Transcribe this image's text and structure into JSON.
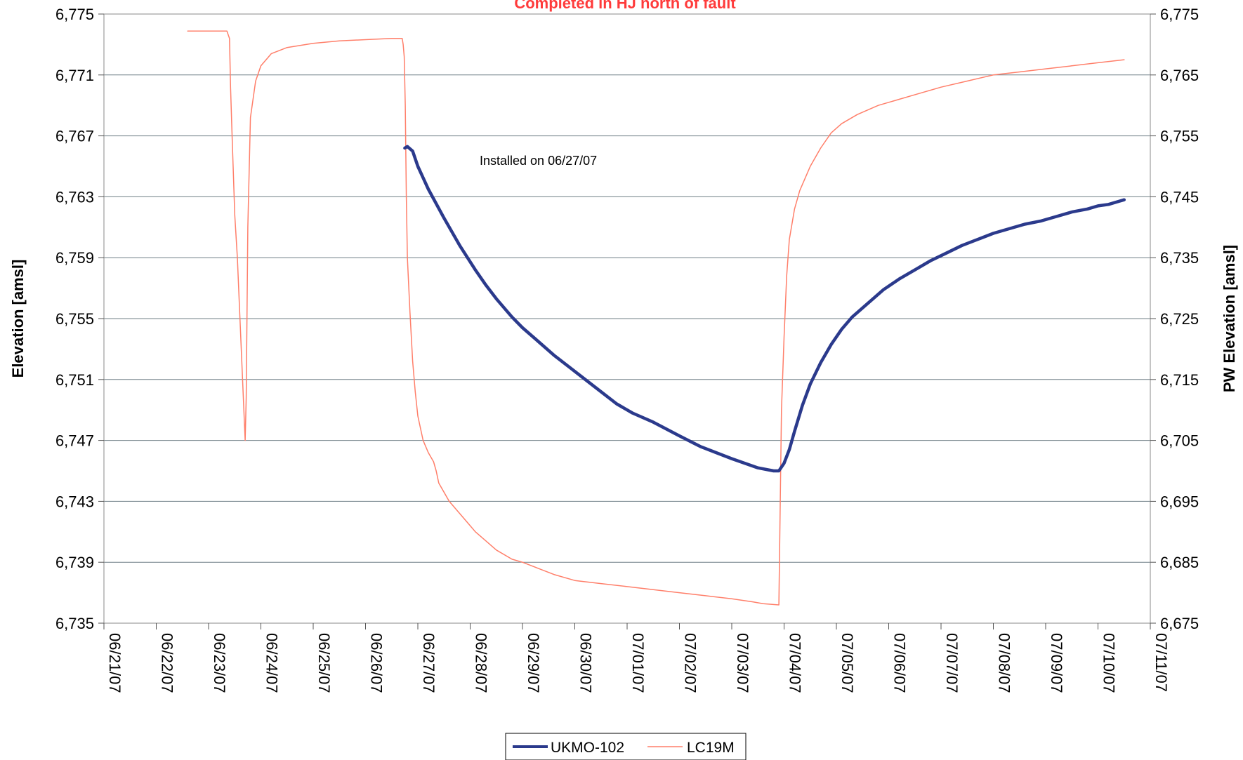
{
  "chart_data": {
    "type": "line",
    "title": "Completed in HJ north of fault",
    "ylabel": "Elevation [amsl]",
    "y2label": "PW Elevation [amsl]",
    "ylim": [
      6735,
      6775
    ],
    "y2lim": [
      6675,
      6775
    ],
    "y_ticks": [
      "6,735",
      "6,739",
      "6,743",
      "6,747",
      "6,751",
      "6,755",
      "6,759",
      "6,763",
      "6,767",
      "6,771",
      "6,775"
    ],
    "y2_ticks": [
      "6,675",
      "6,685",
      "6,695",
      "6,705",
      "6,715",
      "6,725",
      "6,735",
      "6,745",
      "6,755",
      "6,765",
      "6,775"
    ],
    "x_ticks": [
      "06/21/07",
      "06/22/07",
      "06/23/07",
      "06/24/07",
      "06/25/07",
      "06/26/07",
      "06/27/07",
      "06/28/07",
      "06/29/07",
      "06/30/07",
      "07/01/07",
      "07/02/07",
      "07/03/07",
      "07/04/07",
      "07/05/07",
      "07/06/07",
      "07/07/07",
      "07/08/07",
      "07/09/07",
      "07/10/07",
      "07/11/07"
    ],
    "grid": "horizontal",
    "legend_position": "bottom-center",
    "annotation": {
      "text": "Installed on 06/27/07",
      "x": 6.1,
      "y": 6766
    },
    "series": [
      {
        "name": "UKMO-102",
        "axis": "left",
        "color": "#2b3a8c",
        "x": [
          5.75,
          5.8,
          5.9,
          6.0,
          6.2,
          6.5,
          6.8,
          7.1,
          7.3,
          7.5,
          7.8,
          8.0,
          8.3,
          8.6,
          8.9,
          9.2,
          9.5,
          9.8,
          10.1,
          10.5,
          11.0,
          11.4,
          12.0,
          12.5,
          12.8,
          12.9,
          13.0,
          13.1,
          13.2,
          13.35,
          13.5,
          13.7,
          13.9,
          14.1,
          14.3,
          14.6,
          14.9,
          15.2,
          15.5,
          15.8,
          16.1,
          16.4,
          16.7,
          17.0,
          17.3,
          17.6,
          17.9,
          18.2,
          18.5,
          18.8,
          19.0,
          19.2,
          19.4,
          19.5
        ],
        "values": [
          6766.2,
          6766.3,
          6766.0,
          6765.0,
          6763.5,
          6761.6,
          6759.8,
          6758.2,
          6757.2,
          6756.3,
          6755.1,
          6754.4,
          6753.5,
          6752.6,
          6751.8,
          6751.0,
          6750.2,
          6749.4,
          6748.8,
          6748.2,
          6747.3,
          6746.6,
          6745.8,
          6745.2,
          6745.0,
          6745.0,
          6745.5,
          6746.4,
          6747.6,
          6749.3,
          6750.7,
          6752.1,
          6753.3,
          6754.3,
          6755.1,
          6756.0,
          6756.9,
          6757.6,
          6758.2,
          6758.8,
          6759.3,
          6759.8,
          6760.2,
          6760.6,
          6760.9,
          6761.2,
          6761.4,
          6761.7,
          6762.0,
          6762.2,
          6762.4,
          6762.5,
          6762.7,
          6762.8
        ]
      },
      {
        "name": "LC19M",
        "axis": "right",
        "color": "#ff7f6a",
        "x": [
          1.6,
          1.9,
          2.2,
          2.35,
          2.4,
          2.42,
          2.45,
          2.5,
          2.55,
          2.6,
          2.65,
          2.7,
          2.72,
          2.75,
          2.8,
          2.9,
          3.0,
          3.2,
          3.5,
          4.0,
          4.5,
          5.0,
          5.5,
          5.7,
          5.72,
          5.74,
          5.76,
          5.78,
          5.8,
          5.85,
          5.9,
          5.95,
          6.0,
          6.1,
          6.2,
          6.3,
          6.35,
          6.4,
          6.6,
          6.8,
          7.0,
          7.1,
          7.3,
          7.5,
          7.8,
          8.0,
          8.3,
          8.6,
          9.0,
          9.5,
          10.0,
          10.5,
          11.0,
          11.5,
          12.0,
          12.4,
          12.6,
          12.9,
          12.92,
          12.95,
          13.0,
          13.05,
          13.1,
          13.2,
          13.3,
          13.5,
          13.7,
          13.9,
          14.1,
          14.4,
          14.8,
          15.2,
          15.6,
          16.0,
          16.5,
          17.0,
          17.5,
          18.0,
          18.5,
          19.0,
          19.5
        ],
        "values": [
          6772.2,
          6772.2,
          6772.2,
          6772.2,
          6771,
          6763,
          6755,
          6742,
          6735,
          6725,
          6715,
          6705,
          6712,
          6740,
          6758,
          6764,
          6766.5,
          6768.5,
          6769.5,
          6770.2,
          6770.6,
          6770.8,
          6771.0,
          6771.0,
          6770.0,
          6768,
          6760,
          6745,
          6735,
          6726,
          6718,
          6713,
          6709,
          6705,
          6703,
          6701.5,
          6700,
          6698,
          6695,
          6693,
          6691,
          6690,
          6688.5,
          6687,
          6685.5,
          6685,
          6684,
          6683,
          6682,
          6681.5,
          6681,
          6680.5,
          6680,
          6679.5,
          6679,
          6678.5,
          6678.2,
          6678.0,
          6690,
          6710,
          6722,
          6732,
          6738,
          6743,
          6746,
          6750,
          6753,
          6755.5,
          6757,
          6758.5,
          6760,
          6761,
          6762,
          6763,
          6764,
          6765,
          6765.5,
          6766,
          6766.5,
          6767,
          6767.5
        ]
      }
    ]
  },
  "legend": {
    "item1": "UKMO-102",
    "item2": "LC19M"
  }
}
